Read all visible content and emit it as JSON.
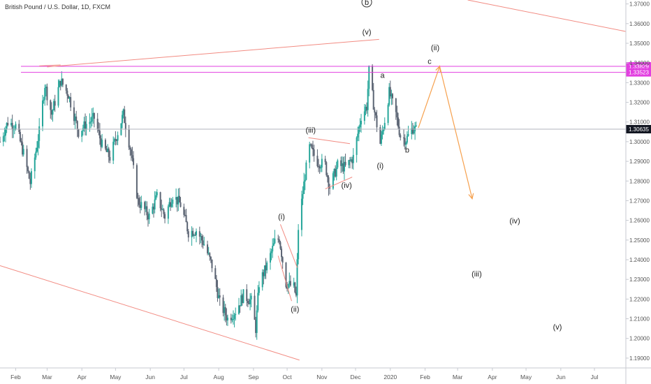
{
  "chart_data": {
    "type": "candlestick",
    "title": "British Pound / U.S. Dollar, 1D, FXCM",
    "ylim": [
      1.185,
      1.372
    ],
    "y_ticks": [
      1.19,
      1.2,
      1.21,
      1.22,
      1.23,
      1.24,
      1.25,
      1.26,
      1.27,
      1.28,
      1.29,
      1.3,
      1.31,
      1.32,
      1.33,
      1.34,
      1.35,
      1.36,
      1.37
    ],
    "y_tick_labels": [
      "1.19000",
      "1.20000",
      "1.21000",
      "1.22000",
      "1.23000",
      "1.24000",
      "1.25000",
      "1.26000",
      "1.27000",
      "1.28000",
      "1.29000",
      "1.30000",
      "1.31000",
      "1.32000",
      "1.33000",
      "1.34000",
      "1.35000",
      "1.36000",
      "1.37000"
    ],
    "x_range": [
      "2019-01-18",
      "2020-07-29"
    ],
    "x_ticks": [
      {
        "date": "2019-02-01",
        "label": "Feb"
      },
      {
        "date": "2019-03-01",
        "label": "Mar"
      },
      {
        "date": "2019-04-01",
        "label": "Apr"
      },
      {
        "date": "2019-05-01",
        "label": "May"
      },
      {
        "date": "2019-06-01",
        "label": "Jun"
      },
      {
        "date": "2019-07-01",
        "label": "Jul"
      },
      {
        "date": "2019-08-01",
        "label": "Aug"
      },
      {
        "date": "2019-09-01",
        "label": "Sep"
      },
      {
        "date": "2019-10-01",
        "label": "Oct"
      },
      {
        "date": "2019-11-01",
        "label": "Nov"
      },
      {
        "date": "2019-12-01",
        "label": "Dec"
      },
      {
        "date": "2020-01-01",
        "label": "2020"
      },
      {
        "date": "2020-02-01",
        "label": "Feb"
      },
      {
        "date": "2020-03-01",
        "label": "Mar"
      },
      {
        "date": "2020-04-01",
        "label": "Apr"
      },
      {
        "date": "2020-05-01",
        "label": "May"
      },
      {
        "date": "2020-06-01",
        "label": "Jun"
      },
      {
        "date": "2020-07-01",
        "label": "Jul"
      }
    ],
    "price_path": [
      [
        "2019-01-18",
        1.3
      ],
      [
        "2019-01-25",
        1.31
      ],
      [
        "2019-02-01",
        1.308
      ],
      [
        "2019-02-08",
        1.294
      ],
      [
        "2019-02-14",
        1.279
      ],
      [
        "2019-02-22",
        1.305
      ],
      [
        "2019-02-27",
        1.329
      ],
      [
        "2019-03-05",
        1.314
      ],
      [
        "2019-03-13",
        1.331
      ],
      [
        "2019-03-20",
        1.324
      ],
      [
        "2019-03-29",
        1.305
      ],
      [
        "2019-04-05",
        1.309
      ],
      [
        "2019-04-12",
        1.312
      ],
      [
        "2019-04-19",
        1.298
      ],
      [
        "2019-04-26",
        1.292
      ],
      [
        "2019-05-02",
        1.303
      ],
      [
        "2019-05-08",
        1.314
      ],
      [
        "2019-05-14",
        1.297
      ],
      [
        "2019-05-21",
        1.27
      ],
      [
        "2019-05-31",
        1.262
      ],
      [
        "2019-06-07",
        1.272
      ],
      [
        "2019-06-14",
        1.262
      ],
      [
        "2019-06-21",
        1.273
      ],
      [
        "2019-06-28",
        1.268
      ],
      [
        "2019-07-05",
        1.254
      ],
      [
        "2019-07-12",
        1.255
      ],
      [
        "2019-07-19",
        1.248
      ],
      [
        "2019-07-26",
        1.237
      ],
      [
        "2019-08-02",
        1.218
      ],
      [
        "2019-08-09",
        1.21
      ],
      [
        "2019-08-16",
        1.214
      ],
      [
        "2019-08-23",
        1.222
      ],
      [
        "2019-08-30",
        1.219
      ],
      [
        "2019-09-03",
        1.205
      ],
      [
        "2019-09-06",
        1.228
      ],
      [
        "2019-09-13",
        1.237
      ],
      [
        "2019-09-20",
        1.249
      ],
      [
        "2019-09-24",
        1.251
      ],
      [
        "2019-09-30",
        1.228
      ],
      [
        "2019-10-07",
        1.226
      ],
      [
        "2019-10-09",
        1.221
      ],
      [
        "2019-10-11",
        1.256
      ],
      [
        "2019-10-17",
        1.283
      ],
      [
        "2019-10-21",
        1.297
      ],
      [
        "2019-10-28",
        1.29
      ],
      [
        "2019-11-04",
        1.288
      ],
      [
        "2019-11-08",
        1.277
      ],
      [
        "2019-11-15",
        1.288
      ],
      [
        "2019-11-22",
        1.287
      ],
      [
        "2019-11-29",
        1.292
      ],
      [
        "2019-12-06",
        1.313
      ],
      [
        "2019-12-11",
        1.318
      ],
      [
        "2019-12-13",
        1.336
      ],
      [
        "2019-12-18",
        1.315
      ],
      [
        "2019-12-23",
        1.299
      ],
      [
        "2019-12-27",
        1.311
      ],
      [
        "2019-12-31",
        1.325
      ],
      [
        "2020-01-06",
        1.314
      ],
      [
        "2020-01-10",
        1.303
      ],
      [
        "2020-01-15",
        1.301
      ],
      [
        "2020-01-21",
        1.307
      ],
      [
        "2020-01-24",
        1.306
      ]
    ],
    "last_price": {
      "value": 1.30635,
      "label": "1.30635",
      "color": "#131722"
    },
    "horizontal_levels": [
      {
        "value": 1.33829,
        "label": "1.33829",
        "color": "#e23fe0"
      },
      {
        "value": 1.33523,
        "label": "1.33523",
        "color": "#e23fe0"
      }
    ],
    "trendlines": [
      {
        "from": [
          "2019-01-18",
          1.237
        ],
        "to": [
          "2019-10-12",
          1.189
        ],
        "color": "#f28b82"
      },
      {
        "from": [
          "2019-03-01",
          1.338
        ],
        "to": [
          "2019-12-22",
          1.352
        ],
        "color": "#f28b82"
      },
      {
        "from": [
          "2020-03-10",
          1.372
        ],
        "to": [
          "2020-07-29",
          1.356
        ],
        "color": "#f28b82"
      },
      {
        "from": [
          "2019-02-22",
          1.3385
        ],
        "to": [
          "2019-03-13",
          1.339
        ],
        "color": "#f28b82"
      },
      {
        "from": [
          "2019-09-25",
          1.258
        ],
        "to": [
          "2019-10-10",
          1.236
        ],
        "color": "#f28b82"
      },
      {
        "from": [
          "2019-09-23",
          1.242
        ],
        "to": [
          "2019-10-05",
          1.219
        ],
        "color": "#f28b82"
      },
      {
        "from": [
          "2019-10-20",
          1.302
        ],
        "to": [
          "2019-11-26",
          1.299
        ],
        "color": "#f28b82"
      },
      {
        "from": [
          "2019-11-04",
          1.276
        ],
        "to": [
          "2019-11-28",
          1.282
        ],
        "color": "#f28b82"
      }
    ],
    "projection_path": {
      "color": "#f6a04d",
      "points": [
        [
          "2020-01-26",
          1.307
        ],
        [
          "2020-02-14",
          1.3383
        ],
        [
          "2020-03-14",
          1.271
        ]
      ]
    },
    "wave_labels": [
      {
        "text": "b",
        "date": "2019-12-11",
        "price": 1.3695,
        "circled": true
      },
      {
        "text": "(v)",
        "date": "2019-12-11",
        "price": 1.3545
      },
      {
        "text": "(ii)",
        "date": "2020-02-10",
        "price": 1.3465
      },
      {
        "text": "c",
        "date": "2020-02-05",
        "price": 1.3395
      },
      {
        "text": "a",
        "date": "2019-12-25",
        "price": 1.3325
      },
      {
        "text": "(iii)",
        "date": "2019-10-22",
        "price": 1.3045
      },
      {
        "text": "(i)",
        "date": "2019-12-23",
        "price": 1.2865
      },
      {
        "text": "b",
        "date": "2020-01-16",
        "price": 1.2945
      },
      {
        "text": "(iv)",
        "date": "2019-11-23",
        "price": 1.2765
      },
      {
        "text": "(i)",
        "date": "2019-09-26",
        "price": 1.2605
      },
      {
        "text": "(ii)",
        "date": "2019-10-08",
        "price": 1.2135
      },
      {
        "text": "(iv)",
        "date": "2020-04-21",
        "price": 1.2585
      },
      {
        "text": "(iii)",
        "date": "2020-03-18",
        "price": 1.2315
      },
      {
        "text": "(v)",
        "date": "2020-05-29",
        "price": 1.2045
      }
    ],
    "colors": {
      "up": "#26a69a",
      "down": "#5b6473",
      "axis": "#555555",
      "last_price_line": "#b2b5be"
    }
  }
}
